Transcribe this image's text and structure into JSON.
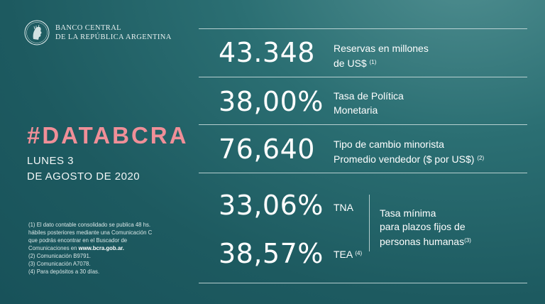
{
  "logo": {
    "line1": "BANCO CENTRAL",
    "line2": "DE LA REPÚBLICA ARGENTINA",
    "icon": "republic-seal-icon"
  },
  "hashtag": "#DATABCRA",
  "date": {
    "line1": "LUNES 3",
    "line2": "DE AGOSTO DE 2020"
  },
  "notes": {
    "n1_a": "(1) El dato contable consolidado se publica 48 hs.",
    "n1_b": "hábiles posteriores mediante una Comunicación C",
    "n1_c": "que podrás encontrar en el Buscador de",
    "n1_d": "Comunicaciones en",
    "n1_link": "www.bcra.gob.ar.",
    "n2": "(2) Comunicación B9791.",
    "n3": "(3) Comunicación A7078.",
    "n4": "(4) Para depósitos a 30 días."
  },
  "stats": {
    "reserves": {
      "value": "43.348",
      "label1": "Reservas en millones",
      "label2": "de US$",
      "note": "(1)"
    },
    "policy_rate": {
      "value": "38,00%",
      "label1": "Tasa de Política",
      "label2": "Monetaria"
    },
    "exchange": {
      "value": "76,640",
      "label1": "Tipo de cambio minorista",
      "label2": "Promedio vendedor  ($ por US$)",
      "note": "(2)"
    },
    "tna": {
      "value": "33,06%",
      "label": "TNA"
    },
    "tea": {
      "value": "38,57%",
      "label": "TEA",
      "note": "(4)"
    },
    "min_rate": {
      "line1": "Tasa mínima",
      "line2": "para plazos fijos de",
      "line3": "personas humanas",
      "note": "(3)"
    }
  }
}
